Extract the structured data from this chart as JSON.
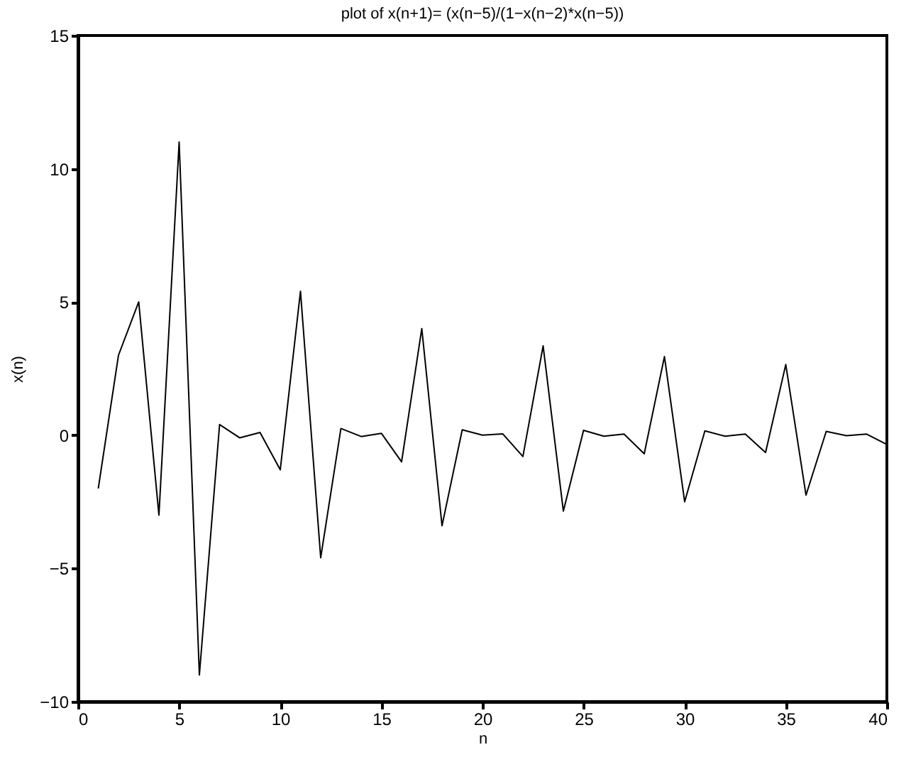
{
  "chart_data": {
    "type": "line",
    "title": "plot of x(n+1)= (x(n−5)/(1−x(n−2)*x(n−5))",
    "xlabel": "n",
    "ylabel": "x(n)",
    "x": [
      1,
      2,
      3,
      4,
      5,
      6,
      7,
      8,
      9,
      10,
      11,
      12,
      13,
      14,
      15,
      16,
      17,
      18,
      19,
      20,
      21,
      22,
      23,
      24,
      25,
      26,
      27,
      28,
      29,
      30,
      31,
      32,
      33,
      34,
      35,
      36,
      37,
      38,
      39,
      40
    ],
    "series": [
      {
        "color": "#000000",
        "values": [
          -2,
          3,
          5,
          -3,
          11,
          -9,
          0.4,
          -0.1,
          0.1,
          -1.3,
          5.4,
          -4.6,
          0.25,
          -0.05,
          0.07,
          -1,
          4,
          -3.4,
          0.2,
          0,
          0.05,
          -0.8,
          3.35,
          -2.85,
          0.18,
          -0.04,
          0.04,
          -0.7,
          2.95,
          -2.5,
          0.16,
          -0.04,
          0.04,
          -0.65,
          2.65,
          -2.25,
          0.14,
          -0.02,
          0.04,
          -0.35
        ]
      }
    ],
    "xlim": [
      0,
      40
    ],
    "xticks": [
      0,
      5,
      10,
      15,
      20,
      25,
      30,
      35,
      40
    ],
    "ylim": [
      -10,
      15
    ],
    "yticks": [
      -10,
      -5,
      0,
      5,
      10,
      15
    ],
    "grid": false,
    "marker": "none",
    "line_style": "solid"
  }
}
